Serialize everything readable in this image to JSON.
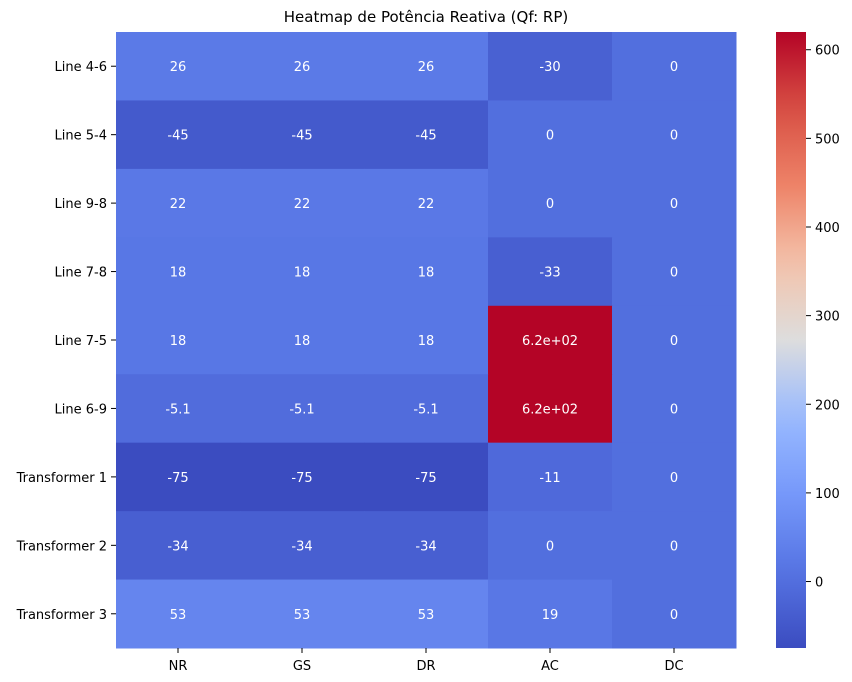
{
  "chart_data": {
    "type": "heatmap",
    "title": "Heatmap de Potência Reativa (Qf: RP)",
    "xlabel": "",
    "ylabel": "",
    "x_categories": [
      "NR",
      "GS",
      "DR",
      "AC",
      "DC"
    ],
    "y_categories": [
      "Line 4-6",
      "Line 5-4",
      "Line 9-8",
      "Line 7-8",
      "Line 7-5",
      "Line 6-9",
      "Transformer 1",
      "Transformer 2",
      "Transformer 3"
    ],
    "values": [
      [
        26,
        26,
        26,
        -30,
        0
      ],
      [
        -45,
        -45,
        -45,
        0,
        0
      ],
      [
        22,
        22,
        22,
        0,
        0
      ],
      [
        18,
        18,
        18,
        -33,
        0
      ],
      [
        18,
        18,
        18,
        620,
        0
      ],
      [
        -5.1,
        -5.1,
        -5.1,
        620,
        0
      ],
      [
        -75,
        -75,
        -75,
        -11,
        0
      ],
      [
        -34,
        -34,
        -34,
        0,
        0
      ],
      [
        53,
        53,
        53,
        19,
        0
      ]
    ],
    "annotations": [
      [
        "26",
        "26",
        "26",
        "-30",
        "0"
      ],
      [
        "-45",
        "-45",
        "-45",
        "0",
        "0"
      ],
      [
        "22",
        "22",
        "22",
        "0",
        "0"
      ],
      [
        "18",
        "18",
        "18",
        "-33",
        "0"
      ],
      [
        "18",
        "18",
        "18",
        "6.2e+02",
        "0"
      ],
      [
        "-5.1",
        "-5.1",
        "-5.1",
        "6.2e+02",
        "0"
      ],
      [
        "-75",
        "-75",
        "-75",
        "-11",
        "0"
      ],
      [
        "-34",
        "-34",
        "-34",
        "0",
        "0"
      ],
      [
        "53",
        "53",
        "53",
        "19",
        "0"
      ]
    ],
    "colorbar": {
      "min": -75,
      "max": 620,
      "ticks": [
        0,
        100,
        200,
        300,
        400,
        500,
        600
      ],
      "colormap": "coolwarm"
    }
  }
}
